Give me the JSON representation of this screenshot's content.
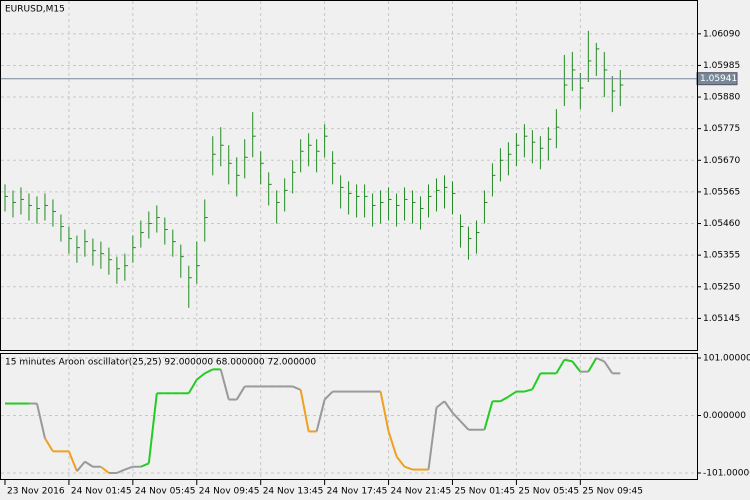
{
  "chart_data": [
    {
      "type": "ohlc",
      "title": "EURUSD,M15",
      "color": "#228b22",
      "grid": true,
      "high": [
        1.0559,
        1.0557,
        1.0558,
        1.0556,
        1.0555,
        1.0556,
        1.0554,
        1.0549,
        1.0545,
        1.0542,
        1.0544,
        1.0541,
        1.054,
        1.0538,
        1.0535,
        1.0536,
        1.0542,
        1.0547,
        1.055,
        1.0552,
        1.0548,
        1.0544,
        1.0539,
        1.0532,
        1.054,
        1.0554,
        1.0575,
        1.0578,
        1.0572,
        1.0568,
        1.0574,
        1.0583,
        1.057,
        1.0563,
        1.0557,
        1.0561,
        1.0567,
        1.0574,
        1.0576,
        1.0574,
        1.0579,
        1.057,
        1.0562,
        1.056,
        1.0559,
        1.0559,
        1.0556,
        1.0557,
        1.0558,
        1.0556,
        1.0558,
        1.0557,
        1.0555,
        1.0559,
        1.0561,
        1.0562,
        1.056,
        1.0549,
        1.0545,
        1.0547,
        1.0557,
        1.0566,
        1.0571,
        1.0573,
        1.0576,
        1.0579,
        1.0577,
        1.0575,
        1.0578,
        1.0584,
        1.0602,
        1.0603,
        1.0596,
        1.061,
        1.0606,
        1.0603,
        1.0595,
        1.0597
      ],
      "low": [
        1.055,
        1.0548,
        1.0549,
        1.0547,
        1.0546,
        1.0547,
        1.0545,
        1.054,
        1.0536,
        1.0533,
        1.0535,
        1.0532,
        1.0531,
        1.0529,
        1.0526,
        1.0527,
        1.0533,
        1.0538,
        1.0541,
        1.0543,
        1.0539,
        1.0535,
        1.0528,
        1.0518,
        1.0526,
        1.054,
        1.0562,
        1.0565,
        1.0559,
        1.0555,
        1.0561,
        1.0568,
        1.0559,
        1.0552,
        1.0546,
        1.055,
        1.0556,
        1.0563,
        1.0565,
        1.0563,
        1.0568,
        1.0559,
        1.0551,
        1.0549,
        1.0548,
        1.0548,
        1.0545,
        1.0546,
        1.0547,
        1.0545,
        1.0547,
        1.0546,
        1.0544,
        1.0548,
        1.055,
        1.0551,
        1.0549,
        1.0538,
        1.0534,
        1.0536,
        1.0546,
        1.0555,
        1.056,
        1.0562,
        1.0565,
        1.0568,
        1.0566,
        1.0564,
        1.0567,
        1.0571,
        1.0585,
        1.059,
        1.0584,
        1.0593,
        1.0595,
        1.0588,
        1.0583,
        1.0585
      ],
      "close": [
        1.0555,
        1.0553,
        1.0554,
        1.0552,
        1.0551,
        1.0552,
        1.055,
        1.0545,
        1.0541,
        1.0538,
        1.054,
        1.0537,
        1.0536,
        1.0534,
        1.0531,
        1.0532,
        1.0538,
        1.0543,
        1.0546,
        1.0548,
        1.0544,
        1.054,
        1.0535,
        1.0528,
        1.0532,
        1.0548,
        1.0569,
        1.0572,
        1.0566,
        1.0562,
        1.0568,
        1.0575,
        1.0566,
        1.0559,
        1.0553,
        1.0557,
        1.0563,
        1.057,
        1.0572,
        1.057,
        1.0575,
        1.0566,
        1.0558,
        1.0556,
        1.0555,
        1.0555,
        1.0552,
        1.0553,
        1.0554,
        1.0552,
        1.0554,
        1.0553,
        1.0551,
        1.0555,
        1.0557,
        1.0558,
        1.0556,
        1.0545,
        1.0541,
        1.0543,
        1.0553,
        1.0562,
        1.0567,
        1.0569,
        1.0572,
        1.0575,
        1.0573,
        1.0571,
        1.0574,
        1.0578,
        1.0592,
        1.0597,
        1.0591,
        1.06,
        1.0604,
        1.0597,
        1.059,
        1.0592
      ],
      "last_price": 1.05941,
      "ylim": [
        1.0504,
        1.06199
      ],
      "yticks": [
        {
          "value": 1.0609,
          "label": "1.06090"
        },
        1.05985,
        {
          "value": 1.0588,
          "label": "1.05880"
        },
        1.05775,
        {
          "value": 1.0567,
          "label": "1.05670"
        },
        1.05565,
        {
          "value": 1.0546,
          "label": "1.05460"
        },
        1.05355,
        {
          "value": 1.0525,
          "label": "1.05250"
        },
        1.05145
      ],
      "xlim": [
        -0.5,
        86.6
      ],
      "xticks": [
        {
          "value": 0,
          "label": "23 Nov 2016"
        },
        {
          "value": 8,
          "label": "24 Nov 01:45"
        },
        {
          "value": 16,
          "label": "24 Nov 05:45"
        },
        {
          "value": 24,
          "label": "24 Nov 09:45"
        },
        {
          "value": 32,
          "label": "24 Nov 13:45"
        },
        {
          "value": 40,
          "label": "24 Nov 17:45"
        },
        {
          "value": 48,
          "label": "24 Nov 21:45"
        },
        {
          "value": 56,
          "label": "25 Nov 01:45"
        },
        {
          "value": 64,
          "label": "25 Nov 05:45"
        },
        {
          "value": 72,
          "label": "25 Nov 09:45"
        }
      ]
    },
    {
      "type": "line",
      "title": "15 minutes Aroon oscillator(25,25) 92.000000 68.000000 72.000000",
      "grid": true,
      "values": [
        21,
        21,
        21,
        21,
        21,
        -40,
        -63,
        -63,
        -63,
        -98,
        -81,
        -90,
        -90,
        -101,
        -101,
        -95,
        -90,
        -90,
        -84,
        39,
        39,
        39,
        39,
        39,
        63,
        74,
        81,
        81,
        28,
        28,
        51,
        51,
        51,
        51,
        51,
        51,
        51,
        45,
        -28,
        -28,
        28,
        42,
        42,
        42,
        42,
        42,
        42,
        42,
        -28,
        -72,
        -90,
        -95,
        -95,
        -95,
        14,
        25,
        5,
        -10,
        -25,
        -25,
        -25,
        25,
        25,
        33,
        42,
        42,
        46,
        74,
        74,
        74,
        98,
        95,
        77,
        77,
        101,
        95,
        74,
        74
      ],
      "point_colors": [
        "#22cc22",
        "#22cc22",
        "#22cc22",
        "#22cc22",
        "#999999",
        "#999999",
        "#f0a020",
        "#f0a020",
        "#f0a020",
        "#f0a020",
        "#999999",
        "#999999",
        "#999999",
        "#f0a020",
        "#999999",
        "#999999",
        "#999999",
        "#999999",
        "#22cc22",
        "#22cc22",
        "#22cc22",
        "#22cc22",
        "#22cc22",
        "#22cc22",
        "#22cc22",
        "#22cc22",
        "#22cc22",
        "#22cc22",
        "#999999",
        "#999999",
        "#999999",
        "#999999",
        "#999999",
        "#999999",
        "#999999",
        "#999999",
        "#999999",
        "#999999",
        "#f0a020",
        "#f0a020",
        "#999999",
        "#999999",
        "#999999",
        "#999999",
        "#999999",
        "#999999",
        "#999999",
        "#999999",
        "#f0a020",
        "#f0a020",
        "#f0a020",
        "#f0a020",
        "#f0a020",
        "#f0a020",
        "#999999",
        "#999999",
        "#999999",
        "#999999",
        "#999999",
        "#999999",
        "#999999",
        "#22cc22",
        "#22cc22",
        "#22cc22",
        "#22cc22",
        "#22cc22",
        "#22cc22",
        "#22cc22",
        "#22cc22",
        "#22cc22",
        "#22cc22",
        "#22cc22",
        "#22cc22",
        "#999999",
        "#22cc22",
        "#999999",
        "#999999",
        "#999999"
      ],
      "ylim": [
        -113.3,
        108
      ],
      "yticks": [
        {
          "value": 101,
          "label": "101.000000"
        },
        {
          "value": 0,
          "label": "0.000000"
        },
        {
          "value": -101,
          "label": "-101.000000"
        }
      ]
    }
  ]
}
